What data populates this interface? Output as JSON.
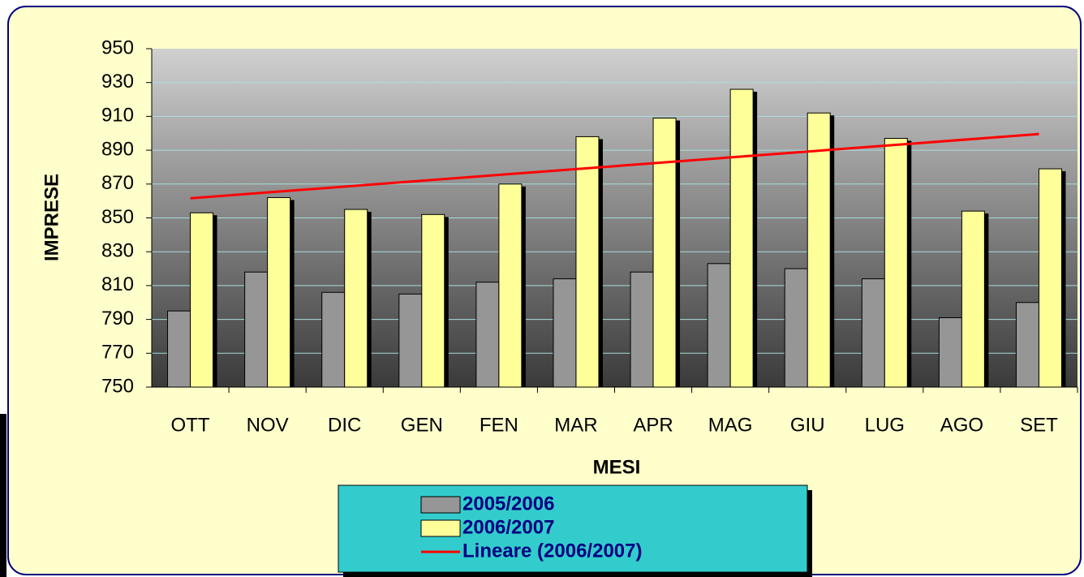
{
  "chart_data": {
    "type": "bar",
    "x_label": "MESI",
    "y_label": "IMPRESE",
    "categories": [
      "OTT",
      "NOV",
      "DIC",
      "GEN",
      "FEN",
      "MAR",
      "APR",
      "MAG",
      "GIU",
      "LUG",
      "AGO",
      "SET"
    ],
    "series": [
      {
        "name": "2005/2006",
        "color": "#969696",
        "values": [
          795,
          818,
          806,
          805,
          812,
          814,
          818,
          823,
          820,
          814,
          791,
          800
        ]
      },
      {
        "name": "2006/2007",
        "color": "#ffff99",
        "values": [
          853,
          862,
          855,
          852,
          870,
          898,
          909,
          926,
          912,
          897,
          854,
          879
        ]
      }
    ],
    "trendline": {
      "name": "Lineare (2006/2007)",
      "color": "#ff0000"
    },
    "ylim": [
      750,
      950
    ],
    "yticks": [
      750,
      770,
      790,
      810,
      830,
      850,
      870,
      890,
      910,
      930,
      950
    ],
    "grid": true
  }
}
